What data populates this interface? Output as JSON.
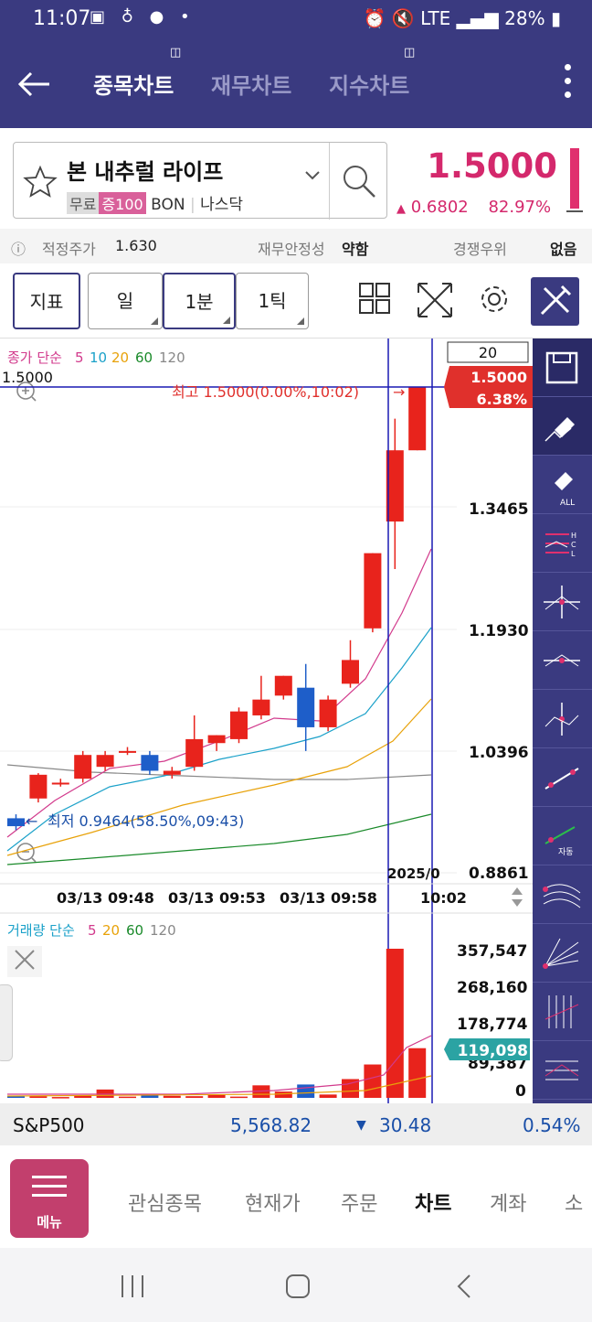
{
  "status": {
    "time": "11:07",
    "battery": "28%",
    "network": "LTE"
  },
  "header": {
    "tabs": [
      {
        "label": "종목차트",
        "active": true
      },
      {
        "label": "재무차트",
        "active": false
      },
      {
        "label": "지수차트",
        "active": false
      }
    ]
  },
  "stock": {
    "name": "본 내추럴 라이프",
    "tag_free": "무료",
    "tag_margin": "증100",
    "ticker": "BON",
    "market": "나스닥",
    "price": "1.5000",
    "change": "0.6802",
    "change_pct": "82.97%"
  },
  "info": {
    "fair_label": "적정주가",
    "fair_value": "1.630",
    "stability_label": "재무안정성",
    "stability_value": "약함",
    "competitive_label": "경쟁우위",
    "competitive_value": "없음"
  },
  "toolbar": {
    "indicator": "지표",
    "period_day": "일",
    "period_min": "1분",
    "period_tick": "1틱"
  },
  "chart": {
    "price_legend_prefix": "종가 단순",
    "ma_labels": [
      "5",
      "10",
      "20",
      "60",
      "120"
    ],
    "count_box": "20",
    "left_price": "1.5000",
    "cur_price_tag": "1.5000",
    "cur_pct_tag": "6.38%",
    "high_label": "최고 1.5000(0.00%,10:02)",
    "low_label": "최저 0.9464(58.50%,09:43)",
    "price_ticks": [
      "1.3465",
      "1.1930",
      "1.0396",
      "0.8861"
    ],
    "date_label": "2025/0",
    "x_labels": [
      "03/13 09:48",
      "03/13 09:53",
      "03/13 09:58",
      "10:02"
    ],
    "volume_legend_prefix": "거래량 단순",
    "vol_ma_labels": [
      "5",
      "20",
      "60",
      "120"
    ],
    "volume_ticks": [
      "357,547",
      "268,160",
      "178,774",
      "89,387",
      "0"
    ],
    "cur_volume_tag": "119,098"
  },
  "chart_data": {
    "type": "candlestick",
    "price_range": [
      0.8861,
      1.5
    ],
    "candles": [
      {
        "o": 0.955,
        "c": 0.945,
        "h": 0.96,
        "l": 0.94
      },
      {
        "o": 0.98,
        "c": 1.01,
        "h": 1.012,
        "l": 0.975
      },
      {
        "o": 1.0,
        "c": 1.0,
        "h": 1.005,
        "l": 0.995
      },
      {
        "o": 1.005,
        "c": 1.035,
        "h": 1.04,
        "l": 1.0
      },
      {
        "o": 1.02,
        "c": 1.035,
        "h": 1.04,
        "l": 1.015
      },
      {
        "o": 1.04,
        "c": 1.04,
        "h": 1.045,
        "l": 1.035
      },
      {
        "o": 1.035,
        "c": 1.015,
        "h": 1.04,
        "l": 1.01
      },
      {
        "o": 1.01,
        "c": 1.015,
        "h": 1.02,
        "l": 1.005
      },
      {
        "o": 1.02,
        "c": 1.055,
        "h": 1.085,
        "l": 1.015
      },
      {
        "o": 1.05,
        "c": 1.06,
        "h": 1.06,
        "l": 1.04
      },
      {
        "o": 1.055,
        "c": 1.09,
        "h": 1.095,
        "l": 1.05
      },
      {
        "o": 1.085,
        "c": 1.105,
        "h": 1.135,
        "l": 1.08
      },
      {
        "o": 1.11,
        "c": 1.135,
        "h": 1.135,
        "l": 1.105
      },
      {
        "o": 1.12,
        "c": 1.07,
        "h": 1.15,
        "l": 1.04
      },
      {
        "o": 1.07,
        "c": 1.105,
        "h": 1.11,
        "l": 1.065
      },
      {
        "o": 1.125,
        "c": 1.155,
        "h": 1.18,
        "l": 1.12
      },
      {
        "o": 1.195,
        "c": 1.29,
        "h": 1.29,
        "l": 1.19
      },
      {
        "o": 1.33,
        "c": 1.42,
        "h": 1.46,
        "l": 1.27
      },
      {
        "o": 1.42,
        "c": 1.5,
        "h": 1.5,
        "l": 1.42
      }
    ],
    "volumes": [
      5000,
      4000,
      2000,
      6000,
      20000,
      3000,
      9000,
      5000,
      4000,
      7000,
      3000,
      30000,
      15000,
      32000,
      8000,
      45000,
      80000,
      357547,
      119098
    ],
    "volume_range": [
      0,
      357547
    ]
  },
  "sp500": {
    "name": "S&P500",
    "value": "5,568.82",
    "change": "30.48",
    "pct": "0.54%"
  },
  "bottom_nav": {
    "menu": "메뉴",
    "items": [
      {
        "label": "관심종목",
        "active": false
      },
      {
        "label": "현재가",
        "active": false
      },
      {
        "label": "주문",
        "active": false
      },
      {
        "label": "차트",
        "active": true
      },
      {
        "label": "계좌",
        "active": false
      },
      {
        "label": "소",
        "active": false
      }
    ]
  }
}
